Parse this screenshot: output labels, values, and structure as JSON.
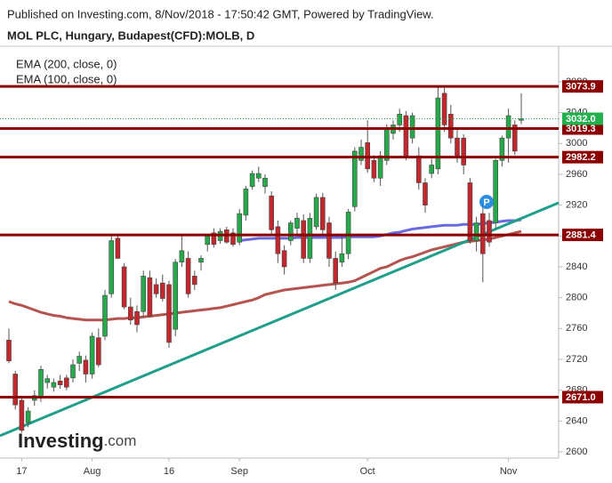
{
  "chart_data": {
    "type": "candlestick",
    "publisher": "Published on Investing.com, 8/Nov/2018 - 17:50:42 GMT, Powered by TradingView.",
    "title": "MOL PLC, Hungary, Budapest(CFD):MOLB, D",
    "watermark": {
      "brand": "Investing",
      "suffix": ".com"
    },
    "categories": [
      null,
      null,
      "17",
      null,
      null,
      null,
      null,
      null,
      null,
      null,
      null,
      null,
      null,
      "Aug",
      null,
      null,
      null,
      null,
      null,
      null,
      null,
      null,
      null,
      null,
      null,
      "16",
      null,
      null,
      null,
      null,
      null,
      null,
      null,
      null,
      null,
      null,
      "Sep",
      null,
      null,
      null,
      null,
      null,
      null,
      null,
      null,
      null,
      null,
      null,
      null,
      null,
      null,
      null,
      null,
      null,
      null,
      null,
      "Oct",
      null,
      null,
      null,
      null,
      null,
      null,
      null,
      null,
      null,
      null,
      null,
      null,
      null,
      null,
      null,
      null,
      null,
      null,
      null,
      null,
      null,
      "Nov",
      null,
      null
    ],
    "open": [
      2745,
      2701,
      2667,
      2638,
      2667,
      2670,
      2690,
      2684,
      2692,
      2696,
      2696,
      2715,
      2719,
      2701,
      2748,
      2750,
      2805,
      2877,
      2840,
      2788,
      2782,
      2782,
      2826,
      2817,
      2819,
      2817,
      2759,
      2846,
      2851,
      2828,
      2846,
      2869,
      2884,
      2874,
      2888,
      2884,
      2872,
      2907,
      2944,
      2955,
      2944,
      2932,
      2892,
      2861,
      2874,
      2890,
      2900,
      2851,
      2892,
      2930,
      2897,
      2851,
      2846,
      2857,
      2918,
      2978,
      3001,
      2978,
      2955,
      2978,
      3013,
      3024,
      3036,
      3007,
      2984,
      2949,
      2961,
      2967,
      3065,
      3038,
      3007,
      3007,
      2949,
      2874,
      2909,
      2900,
      2897,
      2978,
      3007,
      3024,
      3030
    ],
    "high": [
      2760,
      2705,
      2672,
      2658,
      2680,
      2712,
      2700,
      2695,
      2700,
      2700,
      2720,
      2730,
      2725,
      2755,
      2760,
      2810,
      2880,
      2882,
      2845,
      2800,
      2790,
      2835,
      2835,
      2825,
      2830,
      2822,
      2850,
      2880,
      2860,
      2835,
      2855,
      2880,
      2890,
      2890,
      2892,
      2890,
      2915,
      2945,
      2965,
      2970,
      2960,
      2938,
      2900,
      2868,
      2900,
      2910,
      2908,
      2910,
      2935,
      2936,
      2905,
      2860,
      2880,
      2915,
      2995,
      3005,
      3030,
      2985,
      2990,
      3025,
      3030,
      3045,
      3042,
      3040,
      2995,
      2955,
      2980,
      3075,
      3072,
      3050,
      3020,
      3012,
      2955,
      2905,
      2920,
      2910,
      2980,
      3010,
      3045,
      3030,
      3065
    ],
    "low": [
      2715,
      2655,
      2625,
      2632,
      2660,
      2665,
      2682,
      2678,
      2682,
      2680,
      2690,
      2705,
      2690,
      2695,
      2710,
      2745,
      2800,
      2850,
      2785,
      2765,
      2755,
      2775,
      2775,
      2800,
      2795,
      2735,
      2750,
      2840,
      2800,
      2810,
      2835,
      2860,
      2865,
      2870,
      2870,
      2866,
      2868,
      2900,
      2940,
      2950,
      2935,
      2880,
      2845,
      2830,
      2868,
      2880,
      2845,
      2845,
      2888,
      2880,
      2840,
      2810,
      2840,
      2850,
      2912,
      2972,
      2962,
      2950,
      2945,
      2972,
      3005,
      3015,
      2978,
      3000,
      2940,
      2910,
      2955,
      2960,
      3015,
      3000,
      2975,
      2960,
      2870,
      2860,
      2820,
      2866,
      2890,
      2970,
      2975,
      2985,
      3025
    ],
    "close": [
      2718,
      2661,
      2628,
      2653,
      2673,
      2707,
      2695,
      2690,
      2687,
      2684,
      2713,
      2724,
      2701,
      2750,
      2713,
      2803,
      2874,
      2851,
      2788,
      2771,
      2765,
      2828,
      2776,
      2805,
      2799,
      2742,
      2846,
      2861,
      2805,
      2817,
      2851,
      2880,
      2869,
      2886,
      2872,
      2869,
      2909,
      2941,
      2961,
      2961,
      2955,
      2888,
      2857,
      2840,
      2897,
      2903,
      2851,
      2903,
      2930,
      2888,
      2851,
      2819,
      2857,
      2911,
      2990,
      2995,
      2967,
      2955,
      2984,
      3018,
      3024,
      3038,
      2984,
      3036,
      2949,
      2920,
      2972,
      3059,
      3024,
      3007,
      2984,
      2972,
      2874,
      2897,
      2857,
      2872,
      2978,
      3007,
      3036,
      2990,
      3032
    ],
    "up_color": "#26a94a",
    "down_color": "#c1272d",
    "series": [
      {
        "name": "EMA (200, close, 0)",
        "color": "#b5534f",
        "values": [
          2795,
          2792,
          2790,
          2787,
          2784,
          2781,
          2779,
          2777,
          2776,
          2774,
          2773,
          2772,
          2771,
          2771,
          2771,
          2771,
          2772,
          2773,
          2773,
          2774,
          2774,
          2775,
          2776,
          2777,
          2778,
          2779,
          2780,
          2781,
          2782,
          2783,
          2784,
          2785,
          2786,
          2787,
          2789,
          2791,
          2793,
          2795,
          2797,
          2800,
          2804,
          2806,
          2808,
          2810,
          2811,
          2812,
          2813,
          2814,
          2815,
          2816,
          2817,
          2818,
          2819,
          2820,
          2822,
          2826,
          2830,
          2834,
          2838,
          2840,
          2844,
          2848,
          2851,
          2853,
          2856,
          2859,
          2862,
          2864,
          2866,
          2868,
          2870,
          2872,
          2873,
          2874,
          2875,
          2876,
          2878,
          2880,
          2882,
          2884,
          2886
        ]
      },
      {
        "name": "EMA (100, close, 0)",
        "color": "#6a6ae0",
        "values": [
          null,
          null,
          null,
          null,
          null,
          null,
          null,
          null,
          null,
          null,
          null,
          null,
          null,
          null,
          null,
          null,
          null,
          null,
          null,
          null,
          null,
          null,
          null,
          null,
          null,
          null,
          null,
          null,
          null,
          null,
          null,
          null,
          null,
          null,
          null,
          null,
          2874,
          2875,
          2876,
          2877,
          2877,
          2877,
          2877,
          2877,
          2877,
          2878,
          2878,
          2878,
          2878,
          2878,
          2878,
          2878,
          2878,
          2879,
          2879,
          2879,
          2879,
          2879,
          2880,
          2882,
          2884,
          2885,
          2887,
          2889,
          2890,
          2891,
          2892,
          2893,
          2894,
          2894,
          2894,
          2895,
          2895,
          2895,
          2896,
          2897,
          2898,
          2899,
          2900,
          2900,
          2901
        ]
      }
    ],
    "hlines": [
      3073.9,
      3019.3,
      2982.2,
      2881.4,
      {
        "value": 2671,
        "label": "2671.0"
      }
    ],
    "hline_color": "#8b0000",
    "last_price": {
      "value": 3032,
      "label": "3032.0"
    },
    "last_price_color": "#22b14c",
    "trendline": [
      2621,
      2923
    ],
    "trendline_color": "#1f9e89",
    "ylim": [
      2592,
      3126
    ],
    "yticks": [
      2600,
      2640,
      2680,
      2720,
      2760,
      2800,
      2840,
      2880,
      2920,
      2960,
      3000,
      3040,
      3080
    ],
    "grid": false
  }
}
